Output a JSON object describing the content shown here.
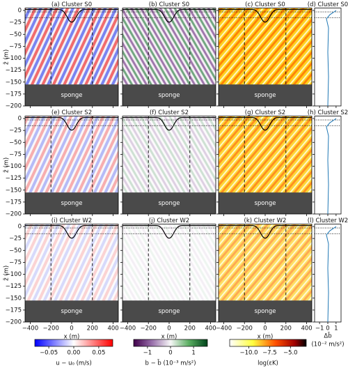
{
  "figure": {
    "panels": [
      {
        "title": "(a) Cluster S0"
      },
      {
        "title": "(b) Cluster S0"
      },
      {
        "title": "(c) Cluster S0"
      },
      {
        "title": "(d) Cluster S0"
      },
      {
        "title": "(e) Cluster S2"
      },
      {
        "title": "(f) Cluster S2"
      },
      {
        "title": "(g) Cluster S2"
      },
      {
        "title": "(h) Cluster S2"
      },
      {
        "title": "(i) Cluster W2"
      },
      {
        "title": "(j) Cluster W2"
      },
      {
        "title": "(k) Cluster W2"
      },
      {
        "title": "(l) Cluster W2"
      }
    ],
    "sponge_label": "sponge",
    "y_label": "z̃ (m)",
    "x_label": "x (m)",
    "ylim": [
      -200,
      5
    ],
    "yticks": [
      0,
      {
        "value": -25,
        "label": "−25"
      },
      {
        "value": -50,
        "label": "−50"
      },
      {
        "value": -75,
        "label": "−75"
      },
      {
        "value": -100,
        "label": "−100"
      },
      {
        "value": -125,
        "label": "−125"
      },
      {
        "value": -150,
        "label": "−150"
      },
      {
        "value": -175,
        "label": "−175"
      },
      {
        "value": -200,
        "label": "−200"
      }
    ],
    "xlim": [
      -450,
      450
    ],
    "xticks": [
      {
        "value": -400,
        "label": "−400"
      },
      {
        "value": -200,
        "label": "−200"
      },
      0,
      200,
      400
    ],
    "profile_xlim": [
      -1.6,
      1.6
    ],
    "profile_xticks": [
      {
        "value": -1,
        "label": "−1"
      },
      0,
      1
    ],
    "profile_x_label": "Δb̄",
    "profile_x_unit": "(10⁻² m/s²)",
    "colorbars": [
      {
        "label": "u − u₀ (m/s)",
        "lim": [
          -0.078,
          0.078
        ],
        "ticks": [
          {
            "value": -0.05,
            "label": "−0.05"
          },
          {
            "value": 0,
            "label": "0.00"
          },
          0.05
        ]
      },
      {
        "label": "b − b̄ (10⁻³ m/s²)",
        "lim": [
          -1.6,
          1.6
        ],
        "ticks": [
          {
            "value": -1,
            "label": "−1"
          },
          0,
          1
        ]
      },
      {
        "label": "log(εK)",
        "lim": [
          -12.3,
          -3.1
        ],
        "ticks": [
          {
            "value": -10,
            "label": "−10.0"
          },
          {
            "value": -7.5,
            "label": "−7.5"
          },
          {
            "value": -5,
            "label": "−5.0"
          }
        ]
      }
    ]
  }
}
